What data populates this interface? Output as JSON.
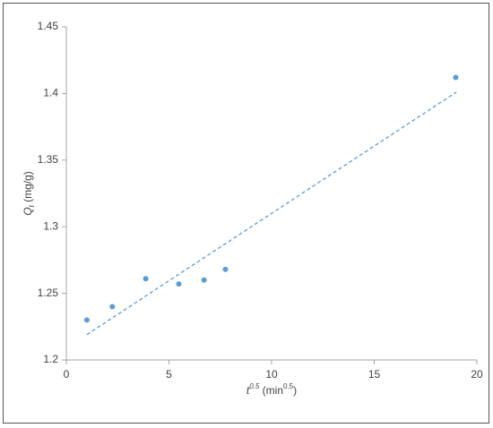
{
  "chart_data": {
    "type": "scatter",
    "x_label_parts": [
      "t",
      "0.5",
      " (min",
      "0.5",
      ")"
    ],
    "y_label_parts": [
      "Q",
      "t",
      " (mg/g)"
    ],
    "series": [
      {
        "color": "#5b9bd5",
        "x": [
          1,
          2.24,
          3.87,
          5.48,
          6.71,
          7.75,
          18.97
        ],
        "values": [
          1.23,
          1.24,
          1.261,
          1.257,
          1.26,
          1.268,
          1.412
        ]
      },
      {
        "color": "#5b9bd5",
        "style": "dashed",
        "x": [
          1,
          19
        ],
        "values": [
          1.219,
          1.401
        ]
      }
    ],
    "xlim": [
      0,
      20
    ],
    "xticks": [
      0,
      5,
      10,
      15,
      20
    ],
    "ylim": [
      1.2,
      1.45
    ],
    "yticks": [
      1.2,
      1.25,
      1.3,
      1.35,
      1.4,
      1.45
    ],
    "grid": false
  }
}
